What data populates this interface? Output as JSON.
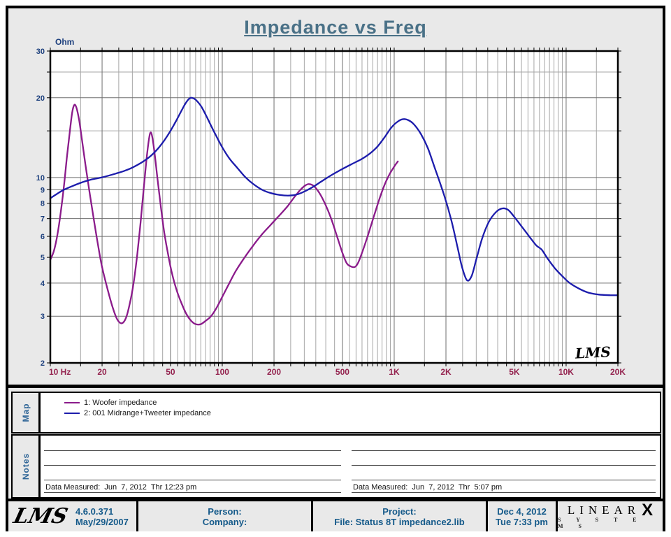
{
  "title": "Impedance vs Freq",
  "chart_data": {
    "type": "line",
    "title": "Impedance vs Freq",
    "xlabel": "Hz",
    "ylabel": "Ohm",
    "x_axis": {
      "scale": "log",
      "min": 10,
      "max": 20000,
      "major_ticks": [
        10,
        20,
        50,
        100,
        200,
        500,
        1000,
        2000,
        5000,
        10000,
        20000
      ],
      "major_labels": [
        "10  Hz",
        "20",
        "50",
        "100",
        "200",
        "500",
        "1K",
        "2K",
        "5K",
        "10K",
        "20K"
      ],
      "minor_ticks": [
        15,
        25,
        30,
        35,
        40,
        45,
        55,
        60,
        65,
        70,
        75,
        80,
        85,
        90,
        95,
        150,
        250,
        300,
        350,
        400,
        450,
        550,
        600,
        650,
        700,
        750,
        800,
        850,
        900,
        950,
        1500,
        2500,
        3000,
        3500,
        4000,
        4500,
        5500,
        6000,
        6500,
        7000,
        7500,
        8000,
        8500,
        9000,
        9500,
        15000
      ]
    },
    "y_axis": {
      "scale": "log",
      "min": 2,
      "max": 30,
      "major_ticks": [
        30,
        20,
        10,
        9,
        8,
        7,
        6,
        5,
        4,
        3,
        2
      ],
      "minor_ticks": [
        25,
        15
      ]
    },
    "grid": {
      "major_color": "#6e6e6e",
      "minor_color": "#a6a6a6"
    },
    "label_colors": {
      "y_axis": "#1c3f7d",
      "x_axis": "#94234f"
    },
    "watermark": "LMS",
    "series": [
      {
        "name": "1: Woofer impedance",
        "color": "#8b1b8b",
        "points": [
          [
            10,
            4.9
          ],
          [
            10.5,
            5.3
          ],
          [
            11,
            6.1
          ],
          [
            11.5,
            7.4
          ],
          [
            12,
            9.3
          ],
          [
            12.5,
            12.0
          ],
          [
            13,
            15.0
          ],
          [
            13.4,
            17.6
          ],
          [
            13.8,
            18.8
          ],
          [
            14.2,
            18.3
          ],
          [
            14.7,
            16.5
          ],
          [
            15.3,
            13.8
          ],
          [
            16,
            11.2
          ],
          [
            17,
            8.6
          ],
          [
            18,
            6.8
          ],
          [
            19,
            5.5
          ],
          [
            20,
            4.6
          ],
          [
            21.5,
            3.8
          ],
          [
            23,
            3.25
          ],
          [
            24.5,
            2.92
          ],
          [
            26,
            2.82
          ],
          [
            27.5,
            2.95
          ],
          [
            29,
            3.35
          ],
          [
            30.5,
            4.0
          ],
          [
            32,
            5.1
          ],
          [
            33.5,
            6.8
          ],
          [
            35,
            9.2
          ],
          [
            36.3,
            11.8
          ],
          [
            37.5,
            14.0
          ],
          [
            38.3,
            14.8
          ],
          [
            39.2,
            14.2
          ],
          [
            40.5,
            12.2
          ],
          [
            42,
            9.9
          ],
          [
            44,
            7.7
          ],
          [
            46,
            6.2
          ],
          [
            48.5,
            5.1
          ],
          [
            51,
            4.35
          ],
          [
            54,
            3.8
          ],
          [
            58,
            3.35
          ],
          [
            62,
            3.05
          ],
          [
            66,
            2.88
          ],
          [
            70,
            2.8
          ],
          [
            75,
            2.8
          ],
          [
            80,
            2.88
          ],
          [
            86,
            3.0
          ],
          [
            92,
            3.2
          ],
          [
            100,
            3.55
          ],
          [
            110,
            4.0
          ],
          [
            120,
            4.45
          ],
          [
            135,
            5.0
          ],
          [
            150,
            5.5
          ],
          [
            170,
            6.1
          ],
          [
            190,
            6.6
          ],
          [
            215,
            7.2
          ],
          [
            240,
            7.8
          ],
          [
            265,
            8.5
          ],
          [
            285,
            9.0
          ],
          [
            305,
            9.35
          ],
          [
            320,
            9.45
          ],
          [
            340,
            9.3
          ],
          [
            365,
            8.8
          ],
          [
            395,
            8.0
          ],
          [
            430,
            7.0
          ],
          [
            465,
            6.0
          ],
          [
            500,
            5.2
          ],
          [
            530,
            4.75
          ],
          [
            560,
            4.62
          ],
          [
            590,
            4.6
          ],
          [
            615,
            4.75
          ],
          [
            650,
            5.2
          ],
          [
            700,
            6.0
          ],
          [
            760,
            7.1
          ],
          [
            820,
            8.3
          ],
          [
            880,
            9.4
          ],
          [
            940,
            10.3
          ],
          [
            1000,
            11.0
          ],
          [
            1050,
            11.5
          ]
        ]
      },
      {
        "name": "2: 001 Midrange+Tweeter impedance",
        "color": "#1c1cac",
        "points": [
          [
            10,
            8.35
          ],
          [
            11,
            8.7
          ],
          [
            12,
            9.0
          ],
          [
            13.5,
            9.3
          ],
          [
            15,
            9.55
          ],
          [
            17,
            9.8
          ],
          [
            19,
            9.95
          ],
          [
            21,
            10.1
          ],
          [
            24,
            10.35
          ],
          [
            27,
            10.6
          ],
          [
            30,
            10.9
          ],
          [
            34,
            11.4
          ],
          [
            38,
            12.0
          ],
          [
            42,
            12.8
          ],
          [
            46,
            13.8
          ],
          [
            50,
            15.0
          ],
          [
            54,
            16.4
          ],
          [
            58,
            17.9
          ],
          [
            61,
            19.0
          ],
          [
            64,
            19.8
          ],
          [
            66,
            20.0
          ],
          [
            69,
            19.8
          ],
          [
            72,
            19.3
          ],
          [
            76,
            18.4
          ],
          [
            81,
            17.0
          ],
          [
            86,
            15.7
          ],
          [
            92,
            14.4
          ],
          [
            100,
            13.0
          ],
          [
            110,
            11.8
          ],
          [
            122,
            10.9
          ],
          [
            135,
            10.1
          ],
          [
            150,
            9.5
          ],
          [
            170,
            9.0
          ],
          [
            190,
            8.75
          ],
          [
            215,
            8.6
          ],
          [
            245,
            8.55
          ],
          [
            275,
            8.65
          ],
          [
            305,
            8.9
          ],
          [
            340,
            9.25
          ],
          [
            380,
            9.7
          ],
          [
            430,
            10.2
          ],
          [
            490,
            10.7
          ],
          [
            560,
            11.2
          ],
          [
            640,
            11.7
          ],
          [
            720,
            12.3
          ],
          [
            800,
            13.1
          ],
          [
            880,
            14.2
          ],
          [
            960,
            15.4
          ],
          [
            1040,
            16.2
          ],
          [
            1120,
            16.6
          ],
          [
            1200,
            16.5
          ],
          [
            1300,
            15.9
          ],
          [
            1430,
            14.6
          ],
          [
            1570,
            12.9
          ],
          [
            1720,
            10.9
          ],
          [
            1950,
            8.6
          ],
          [
            2150,
            6.9
          ],
          [
            2330,
            5.5
          ],
          [
            2480,
            4.6
          ],
          [
            2650,
            4.1
          ],
          [
            2820,
            4.25
          ],
          [
            3000,
            4.9
          ],
          [
            3250,
            5.9
          ],
          [
            3550,
            6.8
          ],
          [
            3900,
            7.4
          ],
          [
            4250,
            7.65
          ],
          [
            4600,
            7.55
          ],
          [
            5000,
            7.1
          ],
          [
            5500,
            6.55
          ],
          [
            6100,
            6.0
          ],
          [
            6700,
            5.55
          ],
          [
            7200,
            5.35
          ],
          [
            7800,
            4.95
          ],
          [
            8600,
            4.55
          ],
          [
            9500,
            4.25
          ],
          [
            10500,
            4.0
          ],
          [
            12000,
            3.8
          ],
          [
            13500,
            3.68
          ],
          [
            15500,
            3.62
          ],
          [
            18000,
            3.6
          ],
          [
            20000,
            3.6
          ]
        ]
      }
    ]
  },
  "map_section": {
    "label": "Map"
  },
  "notes_section": {
    "label": "Notes",
    "left_note": "Data Measured:  Jun  7, 2012  Thr 12:23 pm",
    "right_note": "Data Measured:  Jun  7, 2012  Thr  5:07 pm"
  },
  "footer": {
    "logo": "LMS",
    "version": "4.6.0.371",
    "version_date": "May/29/2007",
    "person_label": "Person:",
    "company_label": "Company:",
    "project_label": "Project:",
    "file_label": "File: Status 8T impedance2.lib",
    "date": "Dec  4, 2012",
    "time": "Tue  7:33 pm",
    "brand": {
      "line1": "LINEAR",
      "x": "X",
      "line2": "S Y S T E M S"
    }
  }
}
